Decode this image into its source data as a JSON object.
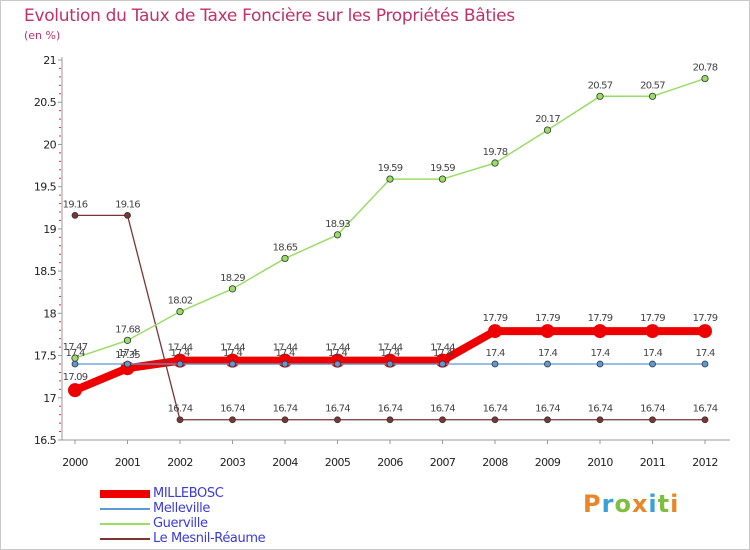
{
  "title": "Evolution du Taux de Taxe Foncière sur les Propriétés Bâties",
  "subtitle": "(en %)",
  "logo": {
    "text": "Proxiti",
    "colors": [
      "#e8872a",
      "#3aa0d8",
      "#7fbf3f",
      "#e8872a",
      "#3aa0d8",
      "#7fbf3f",
      "#e8872a"
    ]
  },
  "chart_data": {
    "type": "line",
    "categories": [
      "2000",
      "2001",
      "2002",
      "2003",
      "2004",
      "2005",
      "2006",
      "2007",
      "2008",
      "2009",
      "2010",
      "2011",
      "2012"
    ],
    "ylim": [
      16.5,
      21
    ],
    "yticks": [
      "16.5",
      "17",
      "17.5",
      "18",
      "18.5",
      "19",
      "19.5",
      "20",
      "20.5",
      "21"
    ],
    "grid": false,
    "legend_position": "bottom-left",
    "series": [
      {
        "name": "MILLEBOSC",
        "color": "#ee0000",
        "values": [
          17.09,
          17.35,
          17.44,
          17.44,
          17.44,
          17.44,
          17.44,
          17.44,
          17.79,
          17.79,
          17.79,
          17.79,
          17.79
        ],
        "labels": [
          "17.09",
          "17.35",
          "17.44",
          "17.44",
          "17.44",
          "17.44",
          "17.44",
          "17.44",
          "17.79",
          "17.79",
          "17.79",
          "17.79",
          "17.79"
        ]
      },
      {
        "name": "Melleville",
        "color": "#5b9bd5",
        "values": [
          17.4,
          17.4,
          17.4,
          17.4,
          17.4,
          17.4,
          17.4,
          17.4,
          17.4,
          17.4,
          17.4,
          17.4,
          17.4
        ],
        "labels": [
          "17.4",
          "17.4",
          "17.4",
          "17.4",
          "17.4",
          "17.4",
          "17.4",
          "17.4",
          "17.4",
          "17.4",
          "17.4",
          "17.4",
          "17.4"
        ]
      },
      {
        "name": "Guerville",
        "color": "#99dd66",
        "values": [
          17.47,
          17.68,
          18.02,
          18.29,
          18.65,
          18.93,
          19.59,
          19.59,
          19.78,
          20.17,
          20.57,
          20.57,
          20.78
        ],
        "labels": [
          "17.47",
          "17.68",
          "18.02",
          "18.29",
          "18.65",
          "18.93",
          "19.59",
          "19.59",
          "19.78",
          "20.17",
          "20.57",
          "20.57",
          "20.78"
        ]
      },
      {
        "name": "Le Mesnil-Réaume",
        "color": "#7a3535",
        "values": [
          19.16,
          19.16,
          16.74,
          16.74,
          16.74,
          16.74,
          16.74,
          16.74,
          16.74,
          16.74,
          16.74,
          16.74,
          16.74
        ],
        "labels": [
          "19.16",
          "19.16",
          "16.74",
          "16.74",
          "16.74",
          "16.74",
          "16.74",
          "16.74",
          "16.74",
          "16.74",
          "16.74",
          "16.74",
          "16.74"
        ]
      }
    ]
  }
}
